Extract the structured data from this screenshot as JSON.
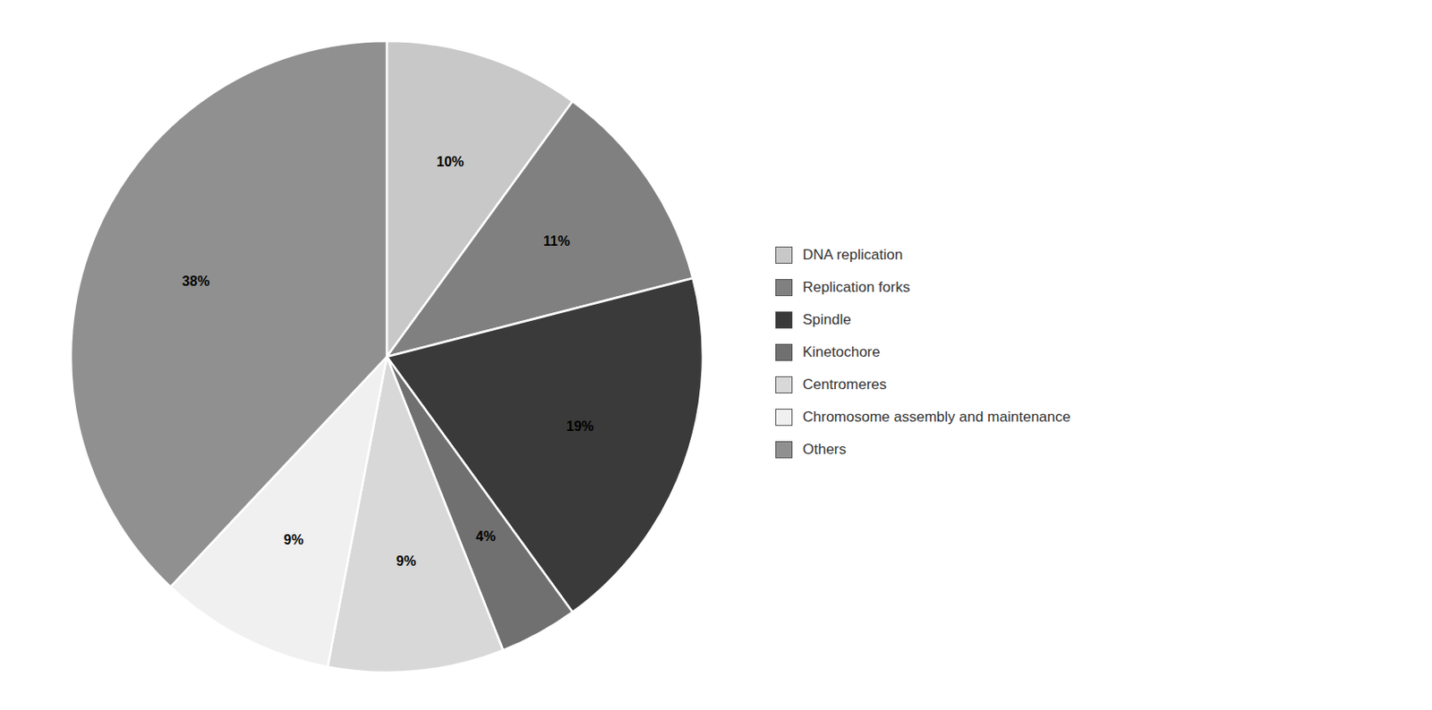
{
  "chart_data": {
    "type": "pie",
    "categories": [
      "DNA replication",
      "Replication forks",
      "Spindle",
      "Kinetochore",
      "Centromeres",
      "Chromosome assembly and maintenance",
      "Others"
    ],
    "values": [
      10,
      11,
      19,
      4,
      9,
      9,
      38
    ],
    "value_labels": [
      "10%",
      "11%",
      "19%",
      "4%",
      "9%",
      "9%",
      "38%"
    ],
    "colors": [
      "#c8c8c8",
      "#808080",
      "#3a3a3a",
      "#707070",
      "#d8d8d8",
      "#f0f0f0",
      "#909090"
    ],
    "data_labels": true,
    "legend": "right"
  }
}
